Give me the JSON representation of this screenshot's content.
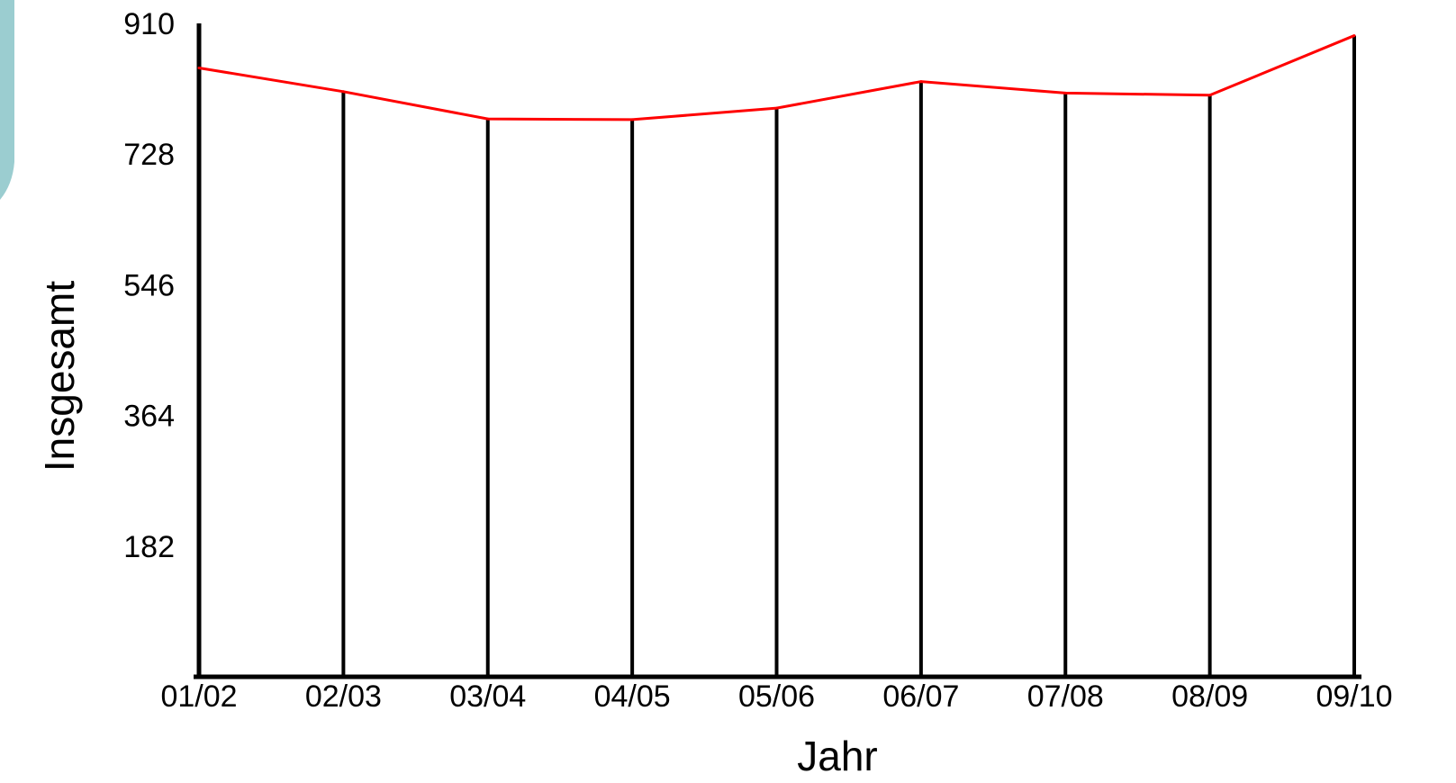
{
  "chart_data": {
    "type": "line",
    "xlabel": "Jahr",
    "ylabel": "Insgesamt",
    "categories": [
      "01/02",
      "02/03",
      "03/04",
      "04/05",
      "05/06",
      "06/07",
      "07/08",
      "08/09",
      "09/10"
    ],
    "series": [
      {
        "values": [
          848,
          815,
          777,
          776,
          792,
          829,
          813,
          810,
          893
        ]
      }
    ],
    "ylim": [
      0,
      910
    ],
    "yticks": [
      "910",
      "728",
      "546",
      "364",
      "182"
    ],
    "grid": "vertical lines at each category",
    "legend": "none"
  },
  "colors": {
    "line": "#ff0000",
    "axis": "#000000",
    "grid": "#000000",
    "decoration": "#9bcdd0"
  }
}
